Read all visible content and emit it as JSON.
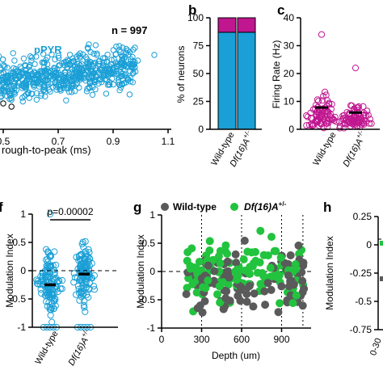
{
  "colors": {
    "pyr": "#1a9fd6",
    "mag": "#c0168f",
    "wt": "#5a5a5a",
    "df": "#22c33e",
    "black": "#000000"
  },
  "panels": {
    "a": {
      "letter": "",
      "n_label": "n = 997",
      "cluster_label": "pPYR",
      "x_label": "rough-to-peak (ms)",
      "x_ticks": [
        "0.5",
        "0.7",
        "0.9",
        "1.1"
      ]
    },
    "b": {
      "letter": "b",
      "y_label": "% of neurons",
      "y_ticks": [
        "0",
        "25",
        "50",
        "75",
        "100"
      ],
      "categories": [
        "Wild-type",
        "Df(16)A"
      ]
    },
    "c": {
      "letter": "c",
      "y_label": "Firing Rate (Hz)",
      "y_ticks": [
        "0",
        "10",
        "20",
        "30",
        "40"
      ],
      "categories": [
        "Wild-type",
        "Df(16)A"
      ]
    },
    "f": {
      "letter": "f",
      "y_label": "Modulation Index",
      "y_ticks": [
        "-1",
        "-0.5",
        "0",
        "0.5",
        "1"
      ],
      "p_label": "p=0.00002",
      "categories": [
        "Wild-type",
        "Df(16)A"
      ]
    },
    "g": {
      "letter": "g",
      "y_label": "Modulation Index",
      "x_label": "Depth (um)",
      "y_ticks": [
        "-1",
        "-0.5",
        "0",
        "0.5",
        "1"
      ],
      "x_ticks": [
        "0",
        "300",
        "600",
        "900"
      ],
      "legend_wt": "Wild-type",
      "legend_df": "Df(16)A"
    },
    "h": {
      "letter": "h",
      "y_label": "Modulation Index",
      "y_ticks": [
        "0.25",
        "0",
        "-0.25",
        "-0.5",
        "-0.75"
      ],
      "x_tick": "0-30"
    }
  },
  "chart_data": [
    {
      "type": "scatter",
      "panel": "a",
      "title": "",
      "xlabel": "rough-to-peak (ms)",
      "ylabel": "",
      "xlim": [
        0.45,
        1.1
      ],
      "series": [
        {
          "name": "pPYR",
          "description": "dense cluster of ~997 points spanning x 0.45–1.02"
        }
      ]
    },
    {
      "type": "bar",
      "panel": "b",
      "stacked": true,
      "categories": [
        "Wild-type",
        "Df(16)A+/-"
      ],
      "series": [
        {
          "values": [
            87,
            87
          ]
        },
        {
          "values": [
            13,
            13
          ]
        }
      ],
      "ylabel": "% of neurons",
      "ylim": [
        0,
        100
      ]
    },
    {
      "type": "scatter",
      "panel": "c",
      "categories": [
        "Wild-type",
        "Df(16)A+/-"
      ],
      "means": [
        7.8,
        6.0
      ],
      "max_points": [
        34,
        22
      ],
      "ylabel": "Firing Rate (Hz)",
      "ylim": [
        0,
        40
      ]
    },
    {
      "type": "scatter",
      "panel": "f",
      "categories": [
        "Wild-type",
        "Df(16)A+/-"
      ],
      "means": [
        -0.25,
        -0.06
      ],
      "ylabel": "Modulation Index",
      "ylim": [
        -1,
        1
      ],
      "annotation": "p=0.00002"
    },
    {
      "type": "scatter",
      "panel": "g",
      "xlabel": "Depth (um)",
      "ylabel": "Modulation Index",
      "xlim": [
        0,
        1100
      ],
      "ylim": [
        -1,
        1
      ],
      "vlines": [
        300,
        600,
        900
      ],
      "series": [
        {
          "name": "Wild-type"
        },
        {
          "name": "Df(16)A+/-"
        }
      ]
    },
    {
      "type": "bar",
      "panel": "h",
      "ylabel": "Modulation Index",
      "ylim": [
        -0.75,
        0.25
      ],
      "categories": [
        "0-30"
      ]
    }
  ]
}
